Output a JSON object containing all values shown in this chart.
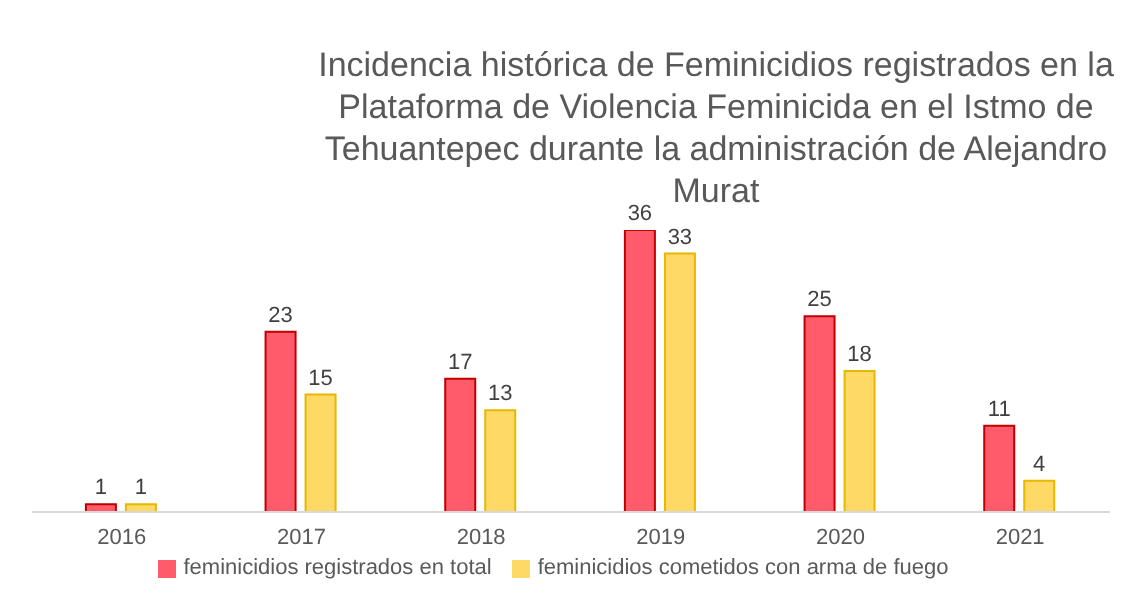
{
  "chart_data": {
    "type": "bar",
    "title": "Incidencia histórica de Feminicidios registrados en la Plataforma de Violencia Feminicida en el Istmo de Tehuantepec durante la administración de Alejandro Murat",
    "categories": [
      "2016",
      "2017",
      "2018",
      "2019",
      "2020",
      "2021"
    ],
    "series": [
      {
        "name": "feminicidios registrados en total",
        "color": "#ff5b6b",
        "values": [
          1,
          23,
          17,
          36,
          25,
          11
        ]
      },
      {
        "name": "feminicidios cometidos con arma de fuego",
        "color": "#ffd966",
        "values": [
          1,
          15,
          13,
          33,
          18,
          4
        ]
      }
    ],
    "tick_labels": "x",
    "legend": "bottom",
    "data_labels": true
  }
}
